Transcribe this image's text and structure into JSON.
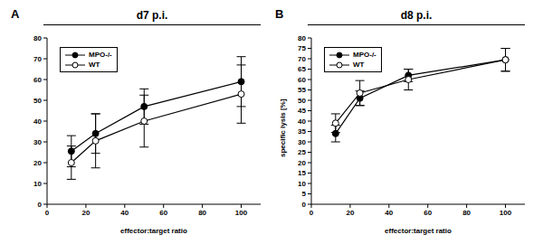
{
  "chart_data": [
    {
      "type": "line",
      "panel": "A",
      "title": "d7 p.i.",
      "xlabel": "effector:target ratio",
      "x": [
        12.5,
        25,
        50,
        100
      ],
      "xlim": [
        0,
        110
      ],
      "xticks": [
        0,
        20,
        40,
        60,
        80,
        100
      ],
      "ylim": [
        0,
        80
      ],
      "yticks": [
        0,
        10,
        20,
        30,
        40,
        50,
        60,
        70,
        80
      ],
      "legend": "upper left",
      "series": [
        {
          "name": "MPO-/-",
          "color": "#000000",
          "marker": "filled",
          "values": [
            25.5,
            34,
            47,
            59
          ],
          "errors": [
            7.5,
            9.5,
            8.5,
            12
          ]
        },
        {
          "name": "WT",
          "color": "#000000",
          "marker": "open",
          "values": [
            20,
            30.5,
            40,
            53
          ],
          "errors": [
            8,
            13,
            12.5,
            14
          ]
        }
      ]
    },
    {
      "type": "line",
      "panel": "B",
      "title": "d8 p.i.",
      "xlabel": "effector:target ratio",
      "ylabel": "specific lysis [%]",
      "x": [
        12.5,
        25,
        50,
        100
      ],
      "xlim": [
        0,
        110
      ],
      "xticks": [
        0,
        20,
        40,
        60,
        80,
        100
      ],
      "ylim": [
        0,
        80
      ],
      "yticks": [
        0,
        5,
        10,
        15,
        20,
        25,
        30,
        35,
        40,
        45,
        50,
        55,
        60,
        65,
        70,
        75,
        80
      ],
      "legend": "upper left",
      "series": [
        {
          "name": "MPO-/-",
          "color": "#000000",
          "marker": "filled",
          "values": [
            34,
            51,
            62,
            69.5
          ],
          "errors": [
            4,
            3.5,
            3,
            5.5
          ]
        },
        {
          "name": "WT",
          "color": "#000000",
          "marker": "open",
          "values": [
            39,
            53.5,
            60,
            69.5
          ],
          "errors": [
            4.5,
            6,
            5,
            5.5
          ]
        }
      ]
    }
  ]
}
